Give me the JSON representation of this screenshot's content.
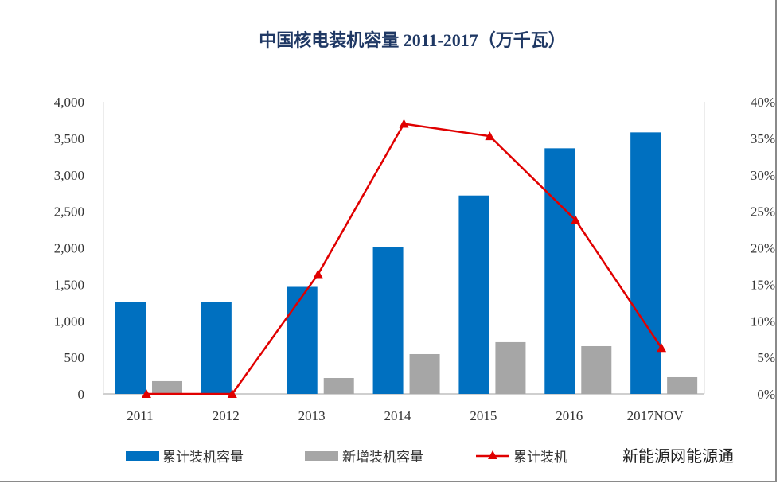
{
  "chart_data": {
    "type": "bar",
    "title": "中国核电装机容量 2011-2017（万千瓦）",
    "categories": [
      "2011",
      "2012",
      "2013",
      "2014",
      "2015",
      "2016",
      "2017NOV"
    ],
    "series": [
      {
        "name": "累计装机容量",
        "type": "bar",
        "axis": "left",
        "color": "#0070c0",
        "values": [
          1257,
          1257,
          1466,
          2008,
          2717,
          3364,
          3582
        ]
      },
      {
        "name": "新增装机容量",
        "type": "bar",
        "axis": "left",
        "color": "#a6a6a6",
        "values": [
          175,
          0,
          218,
          545,
          709,
          654,
          229
        ]
      },
      {
        "name": "累计装机",
        "type": "line",
        "axis": "right",
        "color": "#e00000",
        "marker": "triangle",
        "values": [
          0,
          0,
          16.4,
          37.0,
          35.3,
          23.8,
          6.3
        ]
      }
    ],
    "left_axis": {
      "ylim": [
        0,
        4000
      ],
      "ticks": [
        "0",
        "500",
        "1,000",
        "1,500",
        "2,000",
        "2,500",
        "3,000",
        "3,500",
        "4,000"
      ]
    },
    "right_axis": {
      "ylim": [
        0,
        40
      ],
      "ticks": [
        "0%",
        "5%",
        "10%",
        "15%",
        "20%",
        "25%",
        "30%",
        "35%",
        "40%"
      ]
    },
    "grid": false,
    "legend_placement": "bottom"
  },
  "watermark": "新能源网能源通"
}
